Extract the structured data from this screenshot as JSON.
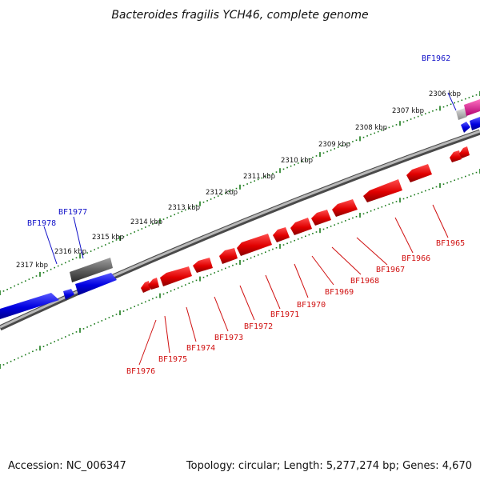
{
  "title": "Bacteroides fragilis YCH46, complete genome",
  "footer": {
    "accession": "Accession: NC_006347",
    "summary": "Topology: circular; Length: 5,277,274 bp; Genes: 4,670"
  },
  "scale_labels": [
    "2306 kbp",
    "2307 kbp",
    "2308 kbp",
    "2309 kbp",
    "2310 kbp",
    "2311 kbp",
    "2312 kbp",
    "2313 kbp",
    "2314 kbp",
    "2315 kbp",
    "2316 kbp",
    "2317 kbp"
  ],
  "upper_gene_labels": [
    "BF1962",
    "BF1977",
    "BF1978"
  ],
  "lower_gene_labels": [
    "BF1965",
    "BF1966",
    "BF1967",
    "BF1968",
    "BF1969",
    "BF1970",
    "BF1971",
    "BF1972",
    "BF1973",
    "BF1974",
    "BF1975",
    "BF1976"
  ],
  "colors": {
    "backbone": "#8a8a8a",
    "forward_strand": "#1a1ae6",
    "reverse_strand": "#e61a1a",
    "ruler_ticks": "#1a7a1a",
    "pseudo": "#707070",
    "rna": "#e0208c",
    "label_blue": "#1010c8",
    "label_red": "#d01010"
  }
}
